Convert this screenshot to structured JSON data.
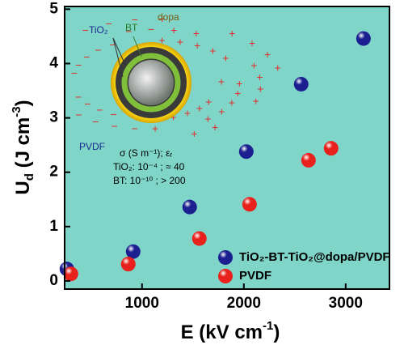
{
  "chart_data": {
    "type": "scatter",
    "x_label": [
      "E (kV cm",
      "-1",
      ")"
    ],
    "y_label": [
      "U",
      "d",
      " (J cm",
      "-3",
      ")"
    ],
    "xlim": [
      240,
      3430
    ],
    "ylim": [
      -0.15,
      5.05
    ],
    "xticks": [
      1000,
      2000,
      3000
    ],
    "yticks": [
      0,
      1,
      2,
      3,
      4,
      5
    ],
    "background": "#7fd5c8",
    "legend": "lower right",
    "series": [
      {
        "name": "TiO₂-BT-TiO₂@dopa/PVDF",
        "color": "#1c1f8f",
        "x": [
          262,
          913,
          1468,
          2024,
          2563,
          3175
        ],
        "values": [
          0.22,
          0.54,
          1.36,
          2.38,
          3.62,
          4.46
        ]
      },
      {
        "name": "PVDF",
        "color": "#e8211c",
        "x": [
          302,
          865,
          1563,
          2056,
          2635,
          2857
        ],
        "values": [
          0.13,
          0.31,
          0.78,
          1.41,
          2.22,
          2.44
        ]
      }
    ],
    "inset": {
      "labels": {
        "tio2": "TiO₂",
        "bt": "BT",
        "dopa": "dopa",
        "pvdf": "PVDF"
      },
      "notes": [
        "σ (S m⁻¹); εᵣ",
        "TiO₂: 10⁻⁴ ; ≈ 40",
        "BT: 10⁻¹⁰ ; > 200"
      ]
    }
  }
}
